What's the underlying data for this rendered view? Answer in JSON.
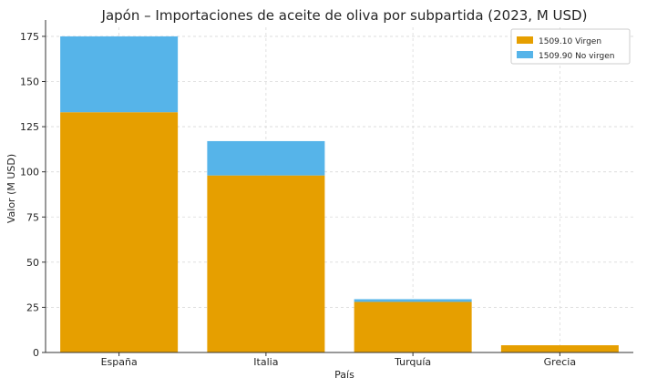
{
  "chart_data": {
    "type": "bar",
    "stacked": true,
    "title": "Japón – Importaciones de aceite de oliva por subpartida (2023, M USD)",
    "xlabel": "País",
    "ylabel": "Valor (M USD)",
    "categories": [
      "España",
      "Italia",
      "Turquía",
      "Grecia"
    ],
    "series": [
      {
        "name": "1509.10 Virgen",
        "color": "#E69F00",
        "values": [
          133,
          98,
          28,
          4
        ]
      },
      {
        "name": "1509.90 No virgen",
        "color": "#56B4E9",
        "values": [
          42,
          19,
          1.5,
          0
        ]
      }
    ],
    "ylim": [
      0,
      180
    ],
    "yticks": [
      0,
      25,
      50,
      75,
      100,
      125,
      150,
      175
    ],
    "grid": true,
    "legend_position": "top-right"
  }
}
